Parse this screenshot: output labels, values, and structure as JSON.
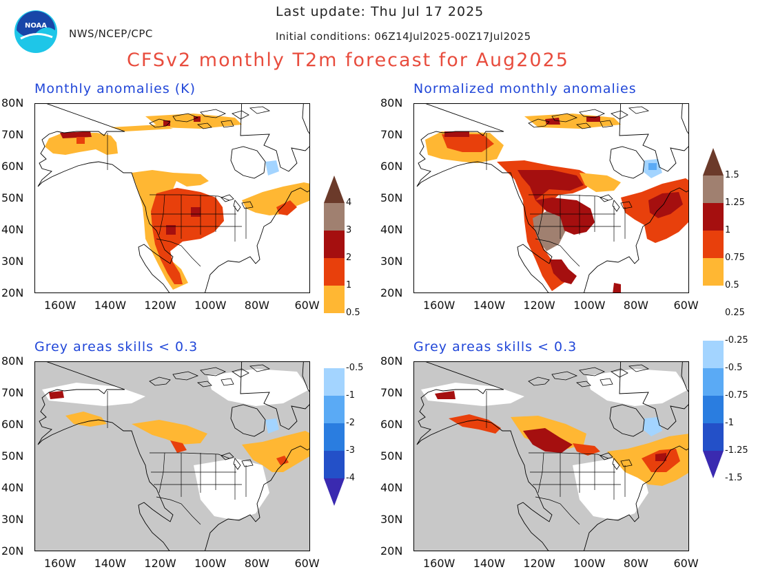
{
  "header": {
    "last_update": "Last update: Thu Jul 17 2025",
    "agency": "NWS/NCEP/CPC",
    "initial_conditions": "Initial conditions: 06Z14Jul2025-00Z17Jul2025",
    "title": "CFSv2 monthly T2m forecast for Aug2025",
    "logo_text": "NOAA"
  },
  "panels": [
    {
      "title": "Monthly anomalies (K)"
    },
    {
      "title": "Normalized monthly anomalies"
    },
    {
      "title": "Grey areas skills < 0.3"
    },
    {
      "title": "Grey areas skills < 0.3"
    }
  ],
  "axes": {
    "lat_labels": [
      "80N",
      "70N",
      "60N",
      "50N",
      "40N",
      "30N",
      "20N"
    ],
    "lon_labels": [
      "160W",
      "140W",
      "120W",
      "100W",
      "80W",
      "60W"
    ],
    "lat_range": [
      20,
      80
    ],
    "lon_range": [
      -170,
      -60
    ]
  },
  "colorbars": [
    {
      "labels_upper": [
        "4",
        "3",
        "2",
        "1",
        "0.5"
      ],
      "labels_lower": [
        "-0.5",
        "-1",
        "-2",
        "-3",
        "-4"
      ],
      "colors_upper": [
        "#6b3a2a",
        "#a08070",
        "#a50f0f",
        "#e8400c",
        "#ffb733"
      ],
      "colors_lower": [
        "#a3d4ff",
        "#5aaaf5",
        "#2a7de0",
        "#2350c8",
        "#3a2ab0"
      ]
    },
    {
      "labels_upper": [
        "1.5",
        "1.25",
        "1",
        "0.75",
        "0.5",
        "0.25"
      ],
      "labels_lower": [
        "-0.25",
        "-0.5",
        "-0.75",
        "-1",
        "-1.25",
        "-1.5"
      ],
      "colors_upper": [
        "#6b3a2a",
        "#a08070",
        "#a50f0f",
        "#e8400c",
        "#ffb733"
      ],
      "colors_lower": [
        "#a3d4ff",
        "#5aaaf5",
        "#2a7de0",
        "#2350c8",
        "#3a2ab0"
      ]
    }
  ],
  "colors": {
    "title": "#e84c3d",
    "panel_title": "#2046d8",
    "low_skill_grey": "#c8c8c8",
    "anom_orange": "#ffb733",
    "anom_redorange": "#e8400c",
    "anom_darkred": "#a50f0f",
    "anom_brown": "#a08070",
    "anom_lightblue": "#a3d4ff"
  }
}
